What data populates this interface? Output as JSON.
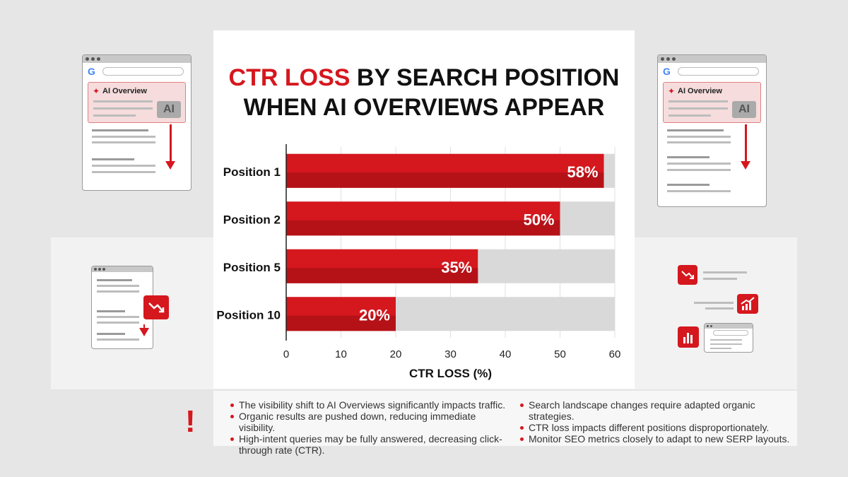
{
  "title": {
    "highlight": "CTR LOSS",
    "line1_rest": "BY SEARCH POSITION",
    "line2": "WHEN AI OVERVIEWS APPEAR"
  },
  "mockups": {
    "ai_overview_label": "AI Overview",
    "ai_chip": "AI",
    "google_letter": "G"
  },
  "icons": [
    "google-logo",
    "sparkle-icon",
    "trend-down-icon",
    "trend-up-icon",
    "bar-chart-icon",
    "alert-icon"
  ],
  "colors": {
    "accent": "#d5171e",
    "accent_dark": "#b51218",
    "track": "#d9d9d9",
    "text": "#111111"
  },
  "alert_symbol": "!",
  "chart_data": {
    "type": "bar",
    "orientation": "horizontal",
    "categories": [
      "Position 1",
      "Position 2",
      "Position 5",
      "Position 10"
    ],
    "values": [
      58,
      50,
      35,
      20
    ],
    "data_labels": [
      "58%",
      "50%",
      "35%",
      "20%"
    ],
    "xlabel": "CTR LOSS (%)",
    "xlim": [
      0,
      60
    ],
    "xticks": [
      0,
      10,
      20,
      30,
      40,
      50,
      60
    ],
    "grid": true
  },
  "notes": {
    "left": [
      "The visibility shift to AI Overviews significantly impacts traffic.",
      "Organic results are pushed down, reducing immediate visibility.",
      "High-intent queries may be fully answered, decreasing click-through rate (CTR)."
    ],
    "right": [
      "Search landscape changes require adapted organic strategies.",
      "CTR loss impacts different positions disproportionately.",
      "Monitor SEO metrics closely to adapt to new SERP layouts."
    ]
  }
}
